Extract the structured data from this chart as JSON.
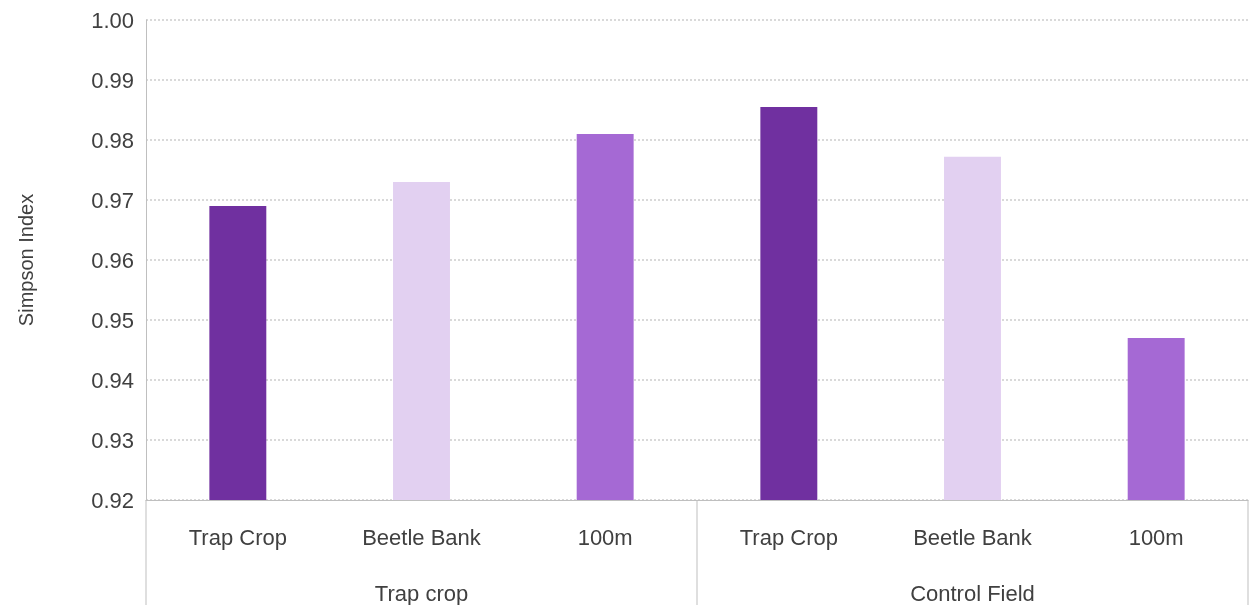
{
  "chart_data": {
    "type": "bar",
    "ylabel": "Simpson Index",
    "categories": [
      "Trap Crop",
      "Beetle Bank",
      "100m",
      "Trap Crop",
      "Beetle Bank",
      "100m"
    ],
    "values": [
      0.969,
      0.973,
      0.981,
      0.9855,
      0.9772,
      0.947
    ],
    "colors": [
      "#7030a0",
      "#e2d0f1",
      "#a569d4",
      "#7030a0",
      "#e2d0f1",
      "#a569d4"
    ],
    "ylim": [
      0.92,
      1.0
    ],
    "yticks": [
      0.92,
      0.93,
      0.94,
      0.95,
      0.96,
      0.97,
      0.98,
      0.99,
      {
        "value": 1.0,
        "label": "1.00"
      }
    ],
    "grid": "y",
    "annotations": [
      "Trap crop",
      "Control Field"
    ]
  }
}
